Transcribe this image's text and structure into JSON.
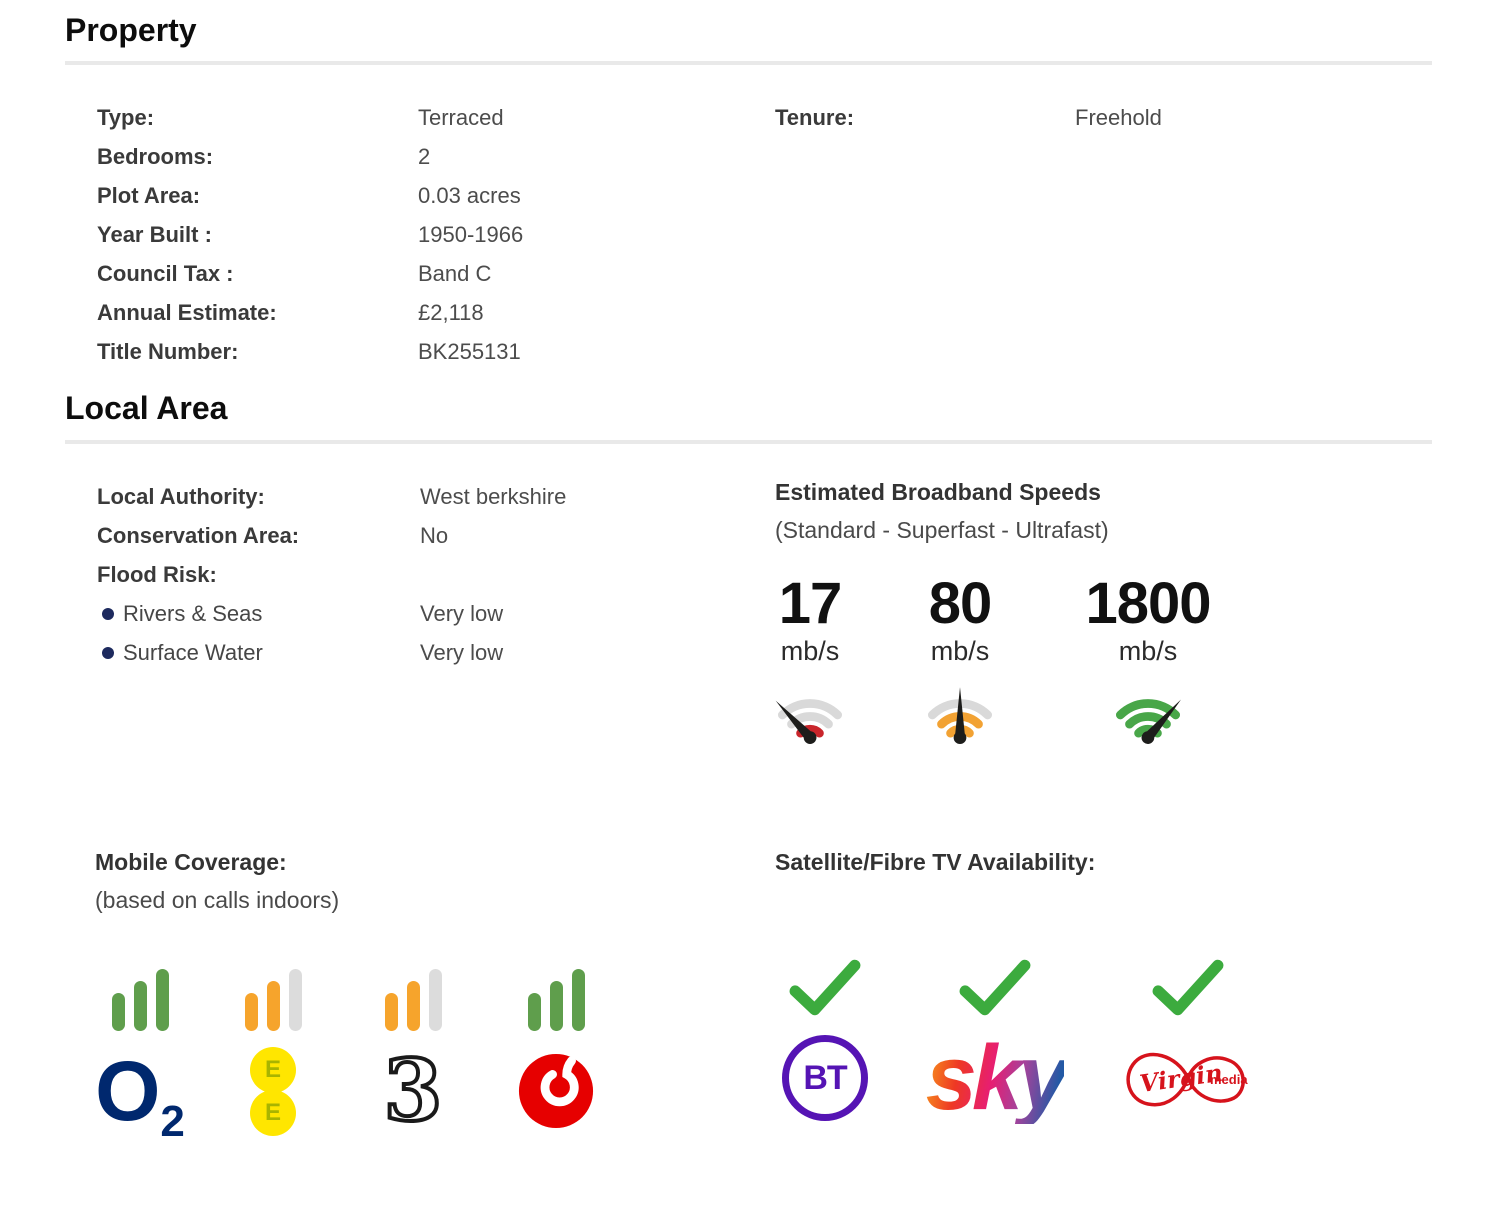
{
  "property": {
    "heading": "Property",
    "rows": [
      {
        "label": "Type:",
        "value": "Terraced"
      },
      {
        "label": "Bedrooms:",
        "value": "2"
      },
      {
        "label": "Plot Area:",
        "value": "0.03 acres"
      },
      {
        "label": "Year Built :",
        "value": "1950-1966"
      },
      {
        "label": "Council Tax :",
        "value": "Band C"
      },
      {
        "label": "Annual Estimate:",
        "value": "£2,118"
      },
      {
        "label": "Title Number:",
        "value": "BK255131"
      }
    ],
    "rows_right": [
      {
        "label": "Tenure:",
        "value": "Freehold"
      }
    ]
  },
  "local_area": {
    "heading": "Local Area",
    "details": [
      {
        "label": "Local Authority:",
        "value": "West berkshire",
        "bullet": false
      },
      {
        "label": "Conservation Area:",
        "value": "No",
        "bullet": false
      },
      {
        "label": "Flood Risk:",
        "value": "",
        "bullet": false
      },
      {
        "label": "Rivers & Seas",
        "value": "Very low",
        "bullet": true
      },
      {
        "label": "Surface Water",
        "value": "Very low",
        "bullet": true
      }
    ],
    "broadband": {
      "heading": "Estimated Broadband Speeds",
      "subheading": "(Standard - Superfast - Ultrafast)",
      "speeds": [
        {
          "tier": "Standard",
          "value": "17",
          "unit": "mb/s",
          "level": "low"
        },
        {
          "tier": "Superfast",
          "value": "80",
          "unit": "mb/s",
          "level": "medium"
        },
        {
          "tier": "Ultrafast",
          "value": "1800",
          "unit": "mb/s",
          "level": "high"
        }
      ]
    },
    "mobile": {
      "heading": "Mobile Coverage:",
      "subheading": "(based on calls indoors)",
      "networks": [
        {
          "name": "O2",
          "bars": 3,
          "bar_color": "#5f9e4c",
          "logo_main": "O",
          "logo_sub": "2"
        },
        {
          "name": "EE",
          "bars": 2,
          "bar_color": "#f6a42c",
          "logo_letters": [
            "E",
            "E"
          ]
        },
        {
          "name": "Three",
          "bars": 2,
          "bar_color": "#f6a42c",
          "logo_text": "3"
        },
        {
          "name": "Vodafone",
          "bars": 3,
          "bar_color": "#5f9e4c"
        }
      ]
    },
    "tv": {
      "heading": "Satellite/Fibre TV Availability:",
      "providers": [
        {
          "name": "BT",
          "available": true,
          "logo_text": "BT"
        },
        {
          "name": "Sky",
          "available": true,
          "logo_text": "sky"
        },
        {
          "name": "Virgin Media",
          "available": true,
          "logo_script": "Virgin",
          "logo_sub": "media"
        }
      ]
    }
  },
  "colors": {
    "divider": "#e9e9e9",
    "bullet_navy": "#1d2a5e",
    "check_green": "#3cab3e",
    "bar_green": "#5f9e4c",
    "bar_orange": "#f6a42c",
    "bar_off": "#dcdcdc",
    "gauge_red": "#c9252b",
    "gauge_orange": "#f2a233",
    "gauge_green": "#48a648",
    "gauge_gray": "#d9d9d9",
    "o2_navy": "#00286e",
    "ee_yellow": "#ffe600",
    "ee_letter_green": "#a8b400",
    "three_black": "#1a1a1a",
    "vodafone_red": "#e60000",
    "bt_purple": "#5514b4",
    "virgin_red": "#d6131c",
    "sky_gradient": [
      "#f9a11b",
      "#ee3824",
      "#e71e72",
      "#a4439b",
      "#2359a5"
    ]
  }
}
